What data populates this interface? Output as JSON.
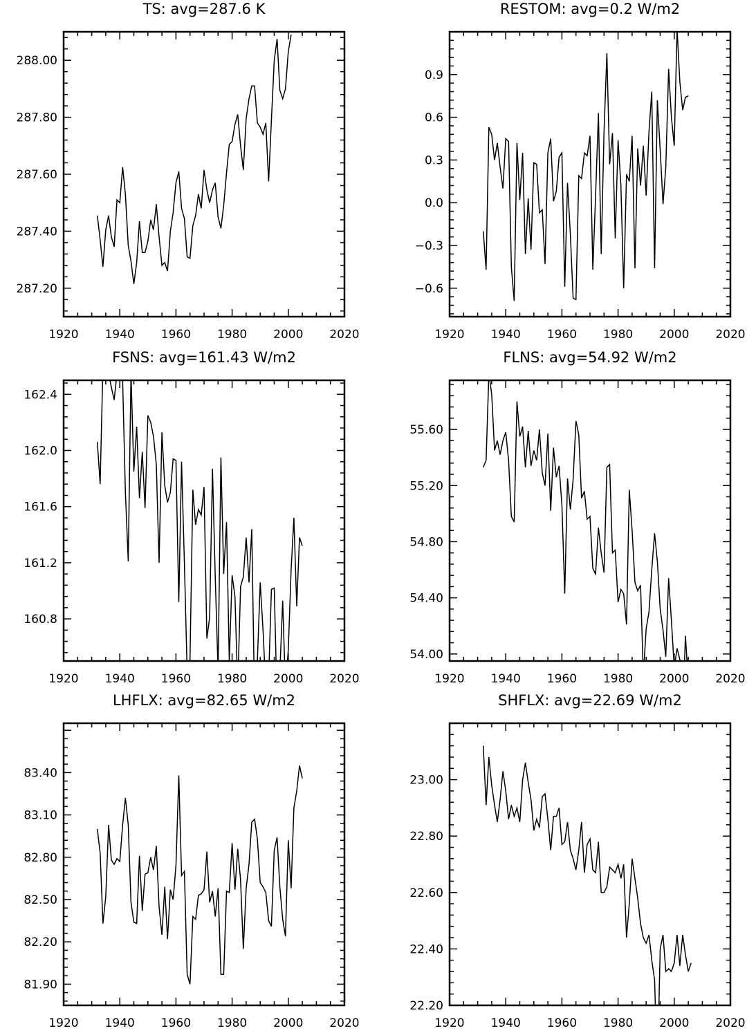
{
  "chart_data": [
    {
      "type": "line",
      "title": "TS: avg=287.6 K",
      "xlim": [
        1920,
        2020
      ],
      "ylim": [
        287.1,
        288.1
      ],
      "xticks": [
        "1920",
        "1940",
        "1960",
        "1980",
        "2000",
        "2020"
      ],
      "yticks": [
        {
          "value": 287.2,
          "label": "287.20"
        },
        {
          "value": 287.4,
          "label": "287.40"
        },
        {
          "value": 287.6,
          "label": "287.60"
        },
        {
          "value": 287.8,
          "label": "287.80"
        },
        {
          "value": 288.0,
          "label": "288.00"
        }
      ],
      "x_start": 1932,
      "values": [
        287.455,
        287.37,
        287.275,
        287.405,
        287.455,
        287.38,
        287.345,
        287.51,
        287.5,
        287.625,
        287.53,
        287.35,
        287.295,
        287.215,
        287.29,
        287.435,
        287.325,
        287.325,
        287.365,
        287.44,
        287.405,
        287.495,
        287.38,
        287.28,
        287.29,
        287.26,
        287.4,
        287.465,
        287.57,
        287.61,
        287.48,
        287.445,
        287.31,
        287.305,
        287.42,
        287.455,
        287.53,
        287.48,
        287.615,
        287.545,
        287.5,
        287.545,
        287.57,
        287.45,
        287.41,
        287.49,
        287.605,
        287.705,
        287.715,
        287.775,
        287.81,
        287.7,
        287.615,
        287.795,
        287.865,
        287.91,
        287.91,
        287.78,
        287.765,
        287.74,
        287.78,
        287.575,
        287.79,
        288.0,
        288.075,
        287.895,
        287.865,
        287.9,
        288.03,
        288.09
      ]
    },
    {
      "type": "line",
      "title": "RESTOM: avg=0.2 W/m2",
      "xlim": [
        1920,
        2020
      ],
      "ylim": [
        -0.8,
        1.2
      ],
      "xticks": [
        "1920",
        "1940",
        "1960",
        "1980",
        "2000",
        "2020"
      ],
      "yticks": [
        {
          "value": -0.6,
          "label": "−0.6"
        },
        {
          "value": -0.3,
          "label": "−0.3"
        },
        {
          "value": 0.0,
          "label": "0.0"
        },
        {
          "value": 0.3,
          "label": "0.3"
        },
        {
          "value": 0.6,
          "label": "0.6"
        },
        {
          "value": 0.9,
          "label": "0.9"
        }
      ],
      "x_start": 1932,
      "values": [
        -0.2,
        -0.47,
        0.53,
        0.48,
        0.3,
        0.42,
        0.25,
        0.1,
        0.45,
        0.43,
        -0.45,
        -0.69,
        0.42,
        0.02,
        0.35,
        -0.36,
        0.03,
        -0.33,
        0.28,
        0.27,
        -0.07,
        -0.05,
        -0.43,
        0.35,
        0.45,
        0.01,
        0.08,
        0.32,
        0.35,
        -0.59,
        0.14,
        -0.22,
        -0.67,
        -0.68,
        0.19,
        0.17,
        0.35,
        0.33,
        0.47,
        -0.47,
        0.05,
        0.63,
        -0.36,
        0.5,
        1.05,
        0.27,
        0.49,
        -0.25,
        0.44,
        0.12,
        -0.6,
        0.2,
        0.15,
        0.47,
        -0.46,
        0.38,
        0.12,
        0.4,
        0.05,
        0.5,
        0.78,
        -0.46,
        0.72,
        0.37,
        -0.01,
        0.25,
        0.94,
        0.6,
        0.4,
        1.22,
        0.85,
        0.65,
        0.74,
        0.75
      ]
    },
    {
      "type": "line",
      "title": "FSNS: avg=161.43 W/m2",
      "xlim": [
        1920,
        2020
      ],
      "ylim": [
        160.5,
        162.5
      ],
      "xticks": [
        "1920",
        "1940",
        "1960",
        "1980",
        "2000",
        "2020"
      ],
      "yticks": [
        {
          "value": 160.8,
          "label": "160.8"
        },
        {
          "value": 161.2,
          "label": "161.2"
        },
        {
          "value": 161.6,
          "label": "161.6"
        },
        {
          "value": 162.0,
          "label": "162.0"
        },
        {
          "value": 162.4,
          "label": "162.4"
        }
      ],
      "x_start": 1932,
      "values": [
        162.06,
        161.76,
        162.6,
        162.65,
        162.55,
        162.45,
        162.36,
        162.55,
        162.6,
        162.5,
        161.7,
        161.21,
        162.55,
        161.85,
        162.17,
        161.66,
        161.99,
        161.59,
        162.25,
        162.2,
        162.1,
        161.9,
        161.2,
        162.13,
        161.75,
        161.63,
        161.7,
        161.94,
        161.93,
        160.92,
        161.92,
        161.2,
        160.42,
        160.51,
        161.72,
        161.47,
        161.58,
        161.54,
        161.74,
        160.66,
        160.81,
        161.87,
        161.1,
        160.42,
        161.95,
        161.12,
        161.49,
        160.5,
        161.11,
        160.96,
        160.3,
        161.03,
        161.1,
        161.38,
        161.06,
        161.44,
        160.2,
        160.5,
        161.06,
        160.72,
        160.3,
        160.38,
        161.01,
        161.02,
        160.2,
        160.42,
        160.93,
        160.3,
        160.58,
        161.15,
        161.52,
        160.89,
        161.38,
        161.32
      ]
    },
    {
      "type": "line",
      "title": "FLNS: avg=54.92 W/m2",
      "xlim": [
        1920,
        2020
      ],
      "ylim": [
        53.95,
        55.95
      ],
      "xticks": [
        "1920",
        "1940",
        "1960",
        "1980",
        "2000",
        "2020"
      ],
      "yticks": [
        {
          "value": 54.0,
          "label": "54.00"
        },
        {
          "value": 54.4,
          "label": "54.40"
        },
        {
          "value": 54.8,
          "label": "54.80"
        },
        {
          "value": 55.2,
          "label": "55.20"
        },
        {
          "value": 55.6,
          "label": "55.60"
        }
      ],
      "x_start": 1932,
      "values": [
        55.33,
        55.38,
        56.0,
        55.85,
        55.45,
        55.52,
        55.42,
        55.52,
        55.58,
        55.38,
        54.98,
        54.94,
        55.8,
        55.55,
        55.62,
        55.33,
        55.59,
        55.34,
        55.45,
        55.38,
        55.6,
        55.29,
        55.2,
        55.57,
        55.02,
        55.47,
        55.26,
        55.34,
        55.06,
        54.43,
        55.25,
        55.03,
        55.24,
        55.66,
        55.56,
        55.11,
        55.16,
        54.96,
        54.98,
        54.61,
        54.57,
        54.9,
        54.72,
        54.58,
        55.33,
        55.35,
        54.72,
        54.74,
        54.37,
        54.46,
        54.43,
        54.21,
        55.17,
        54.88,
        54.51,
        54.45,
        54.49,
        53.85,
        54.18,
        54.3,
        54.6,
        54.86,
        54.66,
        54.32,
        54.17,
        53.98,
        54.54,
        54.24,
        53.9,
        54.04,
        53.96,
        53.58,
        54.13,
        53.8
      ]
    },
    {
      "type": "line",
      "title": "LHFLX: avg=82.65 W/m2",
      "xlim": [
        1920,
        2020
      ],
      "ylim": [
        81.75,
        83.75
      ],
      "xticks": [
        "1920",
        "1940",
        "1960",
        "1980",
        "2000",
        "2020"
      ],
      "yticks": [
        {
          "value": 81.9,
          "label": "81.90"
        },
        {
          "value": 82.2,
          "label": "82.20"
        },
        {
          "value": 82.5,
          "label": "82.50"
        },
        {
          "value": 82.8,
          "label": "82.80"
        },
        {
          "value": 83.1,
          "label": "83.10"
        },
        {
          "value": 83.4,
          "label": "83.40"
        }
      ],
      "x_start": 1932,
      "values": [
        83.0,
        82.83,
        82.33,
        82.52,
        83.03,
        82.78,
        82.75,
        82.79,
        82.77,
        83.03,
        83.22,
        83.03,
        82.48,
        82.34,
        82.33,
        82.81,
        82.42,
        82.68,
        82.69,
        82.8,
        82.71,
        82.88,
        82.45,
        82.25,
        82.59,
        82.22,
        82.57,
        82.5,
        82.74,
        83.38,
        82.67,
        82.7,
        81.97,
        81.9,
        82.38,
        82.36,
        82.53,
        82.54,
        82.57,
        82.84,
        82.48,
        82.56,
        82.38,
        82.58,
        81.97,
        81.97,
        82.56,
        82.55,
        82.9,
        82.57,
        82.86,
        82.64,
        82.15,
        82.58,
        82.75,
        83.05,
        83.07,
        82.93,
        82.62,
        82.59,
        82.55,
        82.35,
        82.31,
        82.85,
        82.94,
        82.59,
        82.36,
        82.24,
        82.92,
        82.58,
        83.15,
        83.27,
        83.45,
        83.36
      ]
    },
    {
      "type": "line",
      "title": "SHFLX: avg=22.69 W/m2",
      "xlim": [
        1920,
        2020
      ],
      "ylim": [
        22.2,
        23.2
      ],
      "xticks": [
        "1920",
        "1940",
        "1960",
        "1980",
        "2000",
        "2020"
      ],
      "yticks": [
        {
          "value": 22.2,
          "label": "22.20"
        },
        {
          "value": 22.4,
          "label": "22.40"
        },
        {
          "value": 22.6,
          "label": "22.60"
        },
        {
          "value": 22.8,
          "label": "22.80"
        },
        {
          "value": 23.0,
          "label": "23.00"
        }
      ],
      "x_start": 1932,
      "values": [
        23.12,
        22.91,
        23.08,
        22.98,
        22.91,
        22.85,
        22.93,
        23.03,
        22.96,
        22.86,
        22.91,
        22.87,
        22.9,
        22.85,
        23.0,
        23.06,
        22.99,
        22.93,
        22.82,
        22.86,
        22.83,
        22.94,
        22.95,
        22.86,
        22.75,
        22.87,
        22.87,
        22.9,
        22.77,
        22.78,
        22.85,
        22.75,
        22.72,
        22.68,
        22.75,
        22.85,
        22.67,
        22.77,
        22.79,
        22.68,
        22.67,
        22.78,
        22.6,
        22.6,
        22.62,
        22.69,
        22.68,
        22.67,
        22.7,
        22.65,
        22.7,
        22.44,
        22.56,
        22.72,
        22.65,
        22.58,
        22.49,
        22.44,
        22.42,
        22.45,
        22.36,
        22.29,
        21.96,
        22.4,
        22.45,
        22.32,
        22.33,
        22.32,
        22.35,
        22.45,
        22.34,
        22.45,
        22.38,
        22.32,
        22.35
      ]
    }
  ]
}
